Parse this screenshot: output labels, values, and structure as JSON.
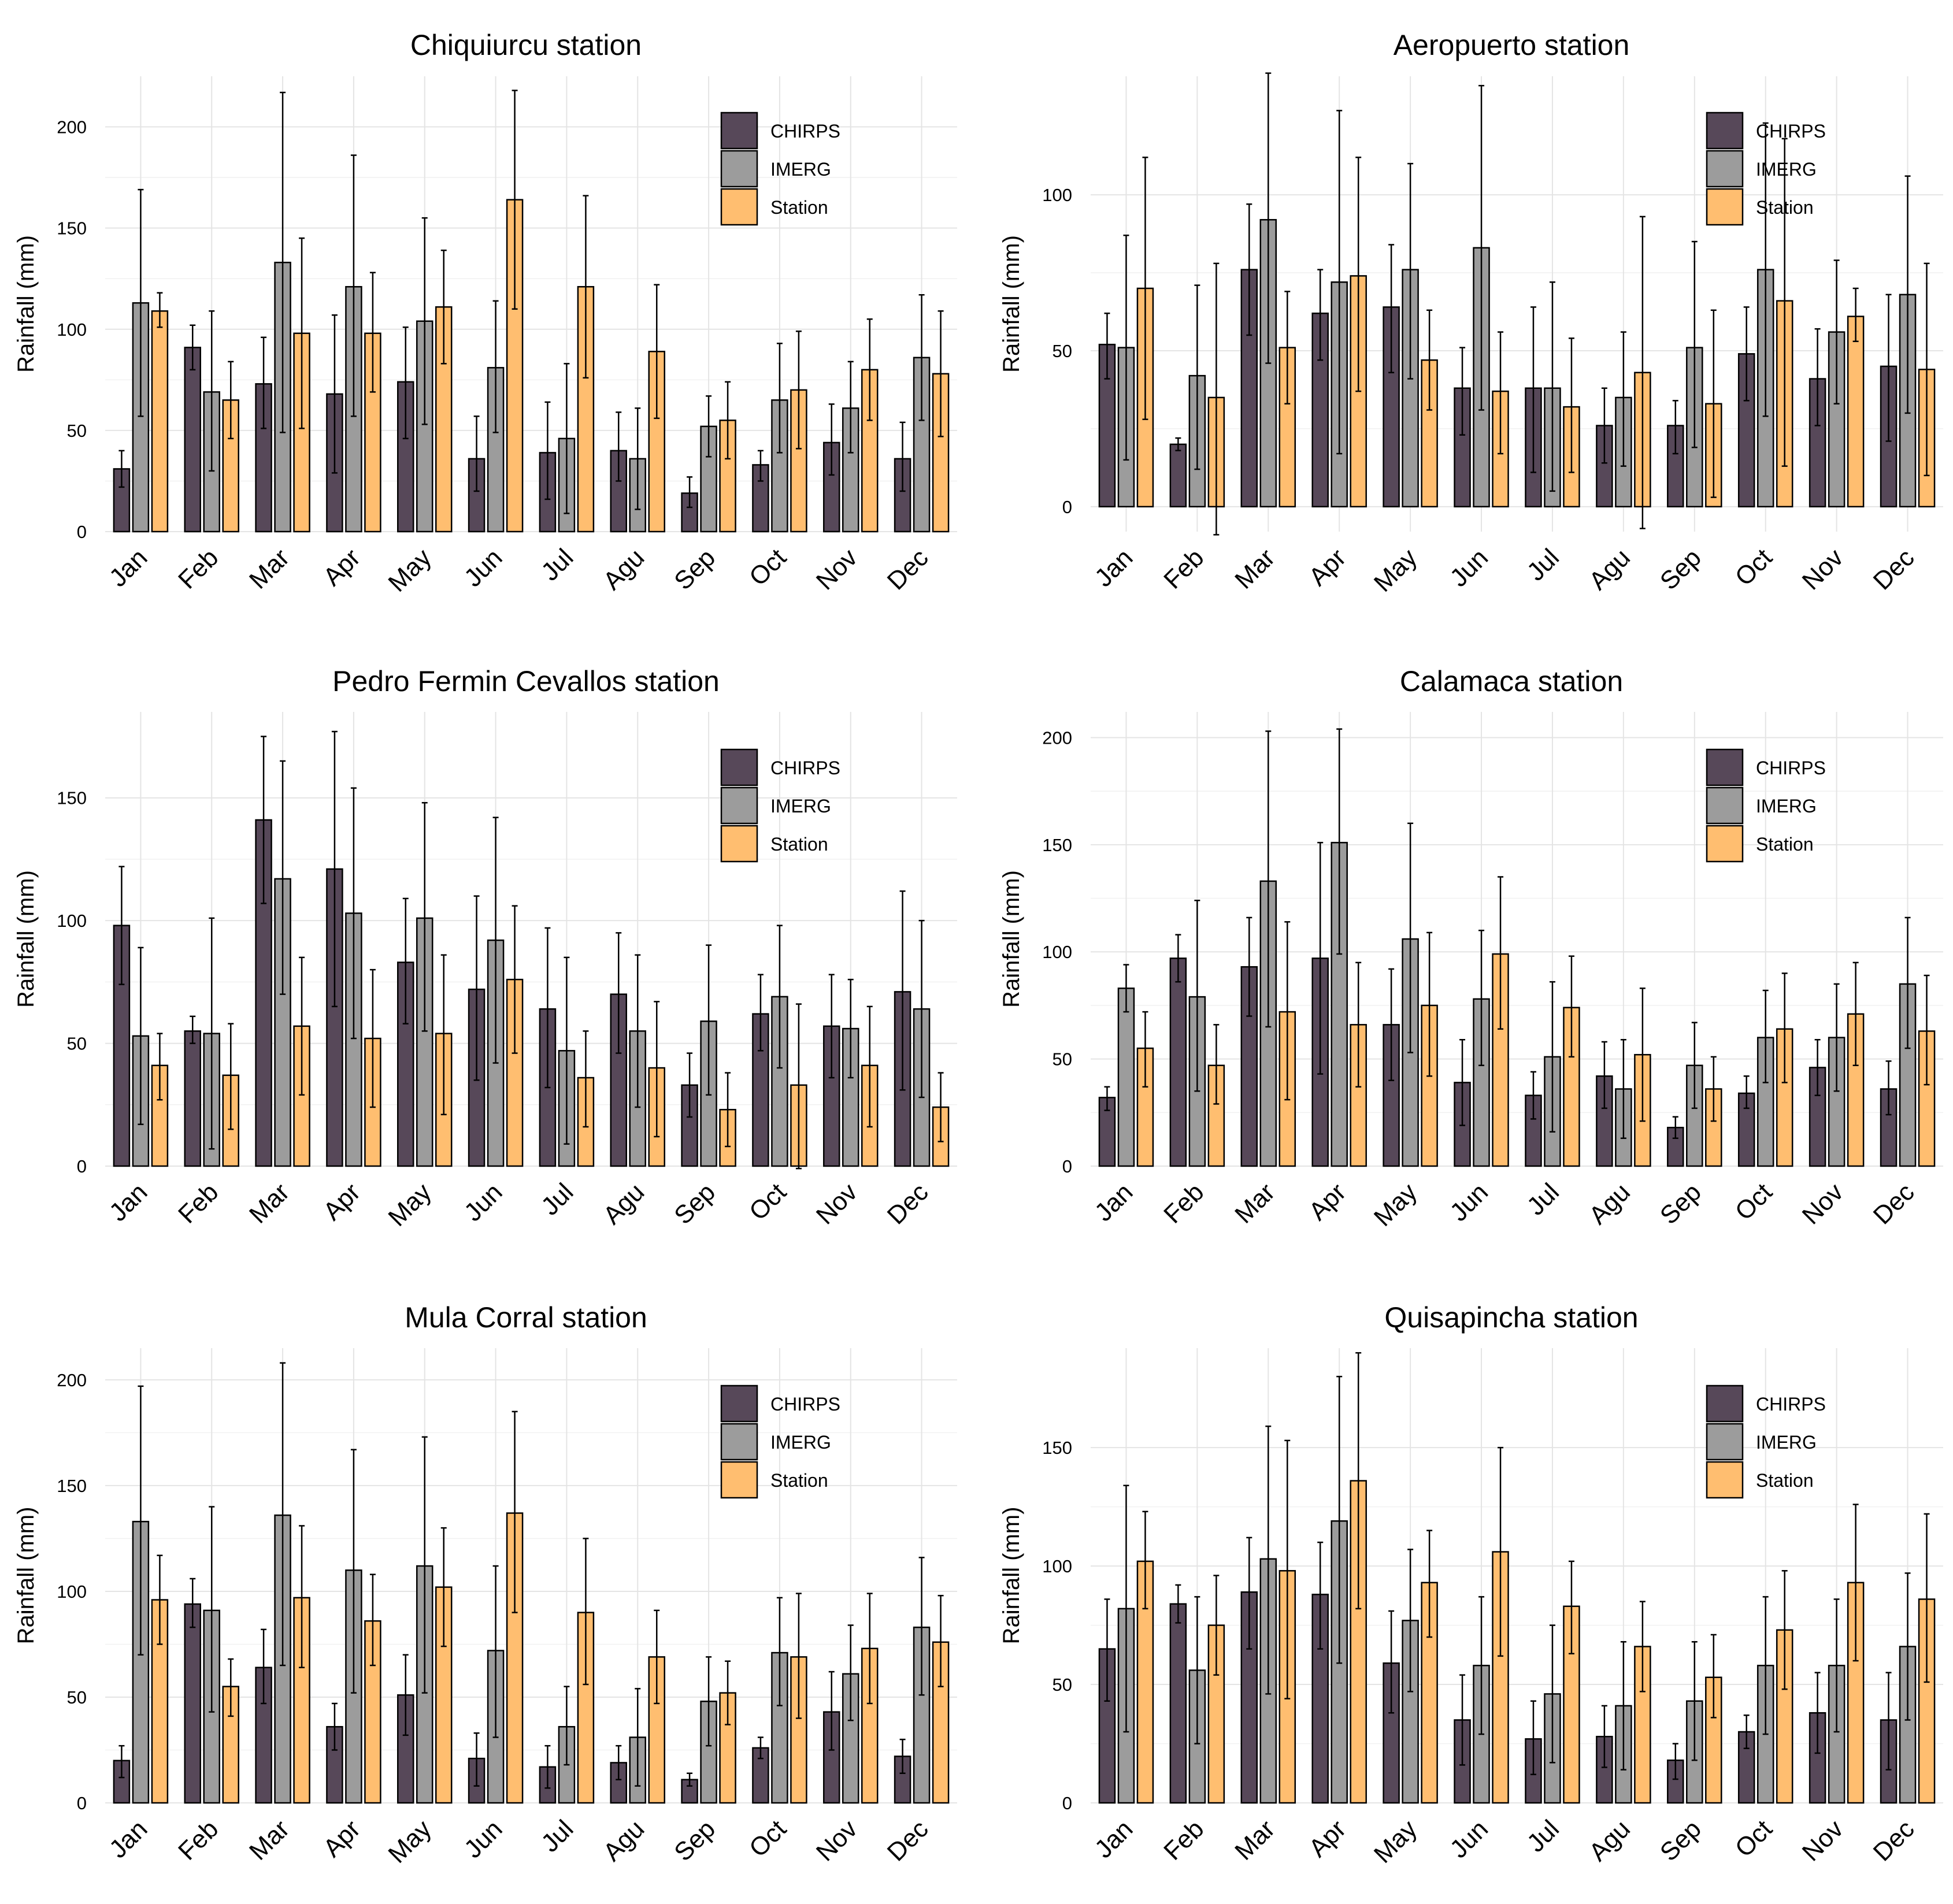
{
  "shared": {
    "months": [
      "Jan",
      "Feb",
      "Mar",
      "Apr",
      "May",
      "Jun",
      "Jul",
      "Agu",
      "Sep",
      "Oct",
      "Nov",
      "Dec"
    ],
    "ylabel": "Rainfall (mm)",
    "legend": [
      {
        "name": "CHIRPS",
        "color": "#574859"
      },
      {
        "name": "IMERG",
        "color": "#9c9c9c"
      },
      {
        "name": "Station",
        "color": "#ffbe70"
      }
    ]
  },
  "chart_data": [
    {
      "type": "bar",
      "title": "Chiquiurcu station",
      "ylabel": "Rainfall (mm)",
      "ylim": [
        0,
        225
      ],
      "yticks": [
        0,
        50,
        100,
        150,
        200
      ],
      "categories": [
        "Jan",
        "Feb",
        "Mar",
        "Apr",
        "May",
        "Jun",
        "Jul",
        "Agu",
        "Sep",
        "Oct",
        "Nov",
        "Dec"
      ],
      "series": [
        {
          "name": "CHIRPS",
          "values": [
            31,
            91,
            73,
            68,
            74,
            36,
            39,
            40,
            19,
            33,
            44,
            36
          ],
          "err_low": [
            22,
            80,
            51,
            29,
            46,
            20,
            16,
            25,
            12,
            25,
            28,
            20
          ],
          "err_high": [
            40,
            102,
            96,
            107,
            101,
            57,
            64,
            59,
            27,
            40,
            63,
            54
          ]
        },
        {
          "name": "IMERG",
          "values": [
            113,
            69,
            133,
            121,
            104,
            81,
            46,
            36,
            52,
            65,
            61,
            86
          ],
          "err_low": [
            57,
            30,
            49,
            57,
            53,
            49,
            9,
            11,
            37,
            39,
            39,
            55
          ],
          "err_high": [
            169,
            109,
            217,
            186,
            155,
            114,
            83,
            61,
            67,
            93,
            84,
            117
          ]
        },
        {
          "name": "Station",
          "values": [
            109,
            65,
            98,
            98,
            111,
            164,
            121,
            89,
            55,
            70,
            80,
            78
          ],
          "err_low": [
            101,
            46,
            51,
            69,
            83,
            110,
            76,
            56,
            36,
            41,
            55,
            47
          ],
          "err_high": [
            118,
            84,
            145,
            128,
            139,
            218,
            166,
            122,
            74,
            99,
            105,
            109
          ]
        }
      ]
    },
    {
      "type": "bar",
      "title": "Aeropuerto station",
      "ylabel": "Rainfall (mm)",
      "ylim": [
        -8,
        138
      ],
      "yticks": [
        0,
        50,
        100
      ],
      "categories": [
        "Jan",
        "Feb",
        "Mar",
        "Apr",
        "May",
        "Jun",
        "Jul",
        "Agu",
        "Sep",
        "Oct",
        "Nov",
        "Dec"
      ],
      "series": [
        {
          "name": "CHIRPS",
          "values": [
            52,
            20,
            76,
            62,
            64,
            38,
            38,
            26,
            26,
            49,
            41,
            45
          ],
          "err_low": [
            41,
            18,
            55,
            47,
            43,
            23,
            11,
            14,
            17,
            34,
            26,
            21
          ],
          "err_high": [
            62,
            22,
            97,
            76,
            84,
            51,
            64,
            38,
            34,
            64,
            57,
            68
          ]
        },
        {
          "name": "IMERG",
          "values": [
            51,
            42,
            92,
            72,
            76,
            83,
            38,
            35,
            51,
            76,
            56,
            68
          ],
          "err_low": [
            15,
            12,
            46,
            17,
            41,
            31,
            5,
            13,
            19,
            29,
            33,
            30
          ],
          "err_high": [
            87,
            71,
            139,
            127,
            110,
            135,
            72,
            56,
            85,
            123,
            79,
            106
          ]
        },
        {
          "name": "Station",
          "values": [
            70,
            35,
            51,
            74,
            47,
            37,
            32,
            43,
            33,
            66,
            61,
            44
          ],
          "err_low": [
            28,
            -9,
            33,
            37,
            31,
            17,
            11,
            -7,
            3,
            13,
            53,
            10
          ],
          "err_high": [
            112,
            78,
            69,
            112,
            63,
            56,
            54,
            93,
            63,
            118,
            70,
            78
          ]
        }
      ]
    },
    {
      "type": "bar",
      "title": "Pedro Fermin Cevallos station",
      "ylabel": "Rainfall (mm)",
      "ylim": [
        0,
        185
      ],
      "yticks": [
        0,
        50,
        100,
        150
      ],
      "categories": [
        "Jan",
        "Feb",
        "Mar",
        "Apr",
        "May",
        "Jun",
        "Jul",
        "Agu",
        "Sep",
        "Oct",
        "Nov",
        "Dec"
      ],
      "series": [
        {
          "name": "CHIRPS",
          "values": [
            98,
            55,
            141,
            121,
            83,
            72,
            64,
            70,
            33,
            62,
            57,
            71
          ],
          "err_low": [
            74,
            50,
            107,
            65,
            58,
            35,
            32,
            46,
            20,
            47,
            36,
            31
          ],
          "err_high": [
            122,
            61,
            175,
            177,
            109,
            110,
            97,
            95,
            46,
            78,
            78,
            112
          ]
        },
        {
          "name": "IMERG",
          "values": [
            53,
            54,
            117,
            103,
            101,
            92,
            47,
            55,
            59,
            69,
            56,
            64
          ],
          "err_low": [
            17,
            7,
            70,
            52,
            55,
            42,
            9,
            24,
            29,
            40,
            36,
            28
          ],
          "err_high": [
            89,
            101,
            165,
            154,
            148,
            142,
            85,
            86,
            90,
            98,
            76,
            100
          ]
        },
        {
          "name": "Station",
          "values": [
            41,
            37,
            57,
            52,
            54,
            76,
            36,
            40,
            23,
            33,
            41,
            24
          ],
          "err_low": [
            27,
            15,
            29,
            24,
            21,
            46,
            16,
            12,
            8,
            -1,
            16,
            10
          ],
          "err_high": [
            54,
            58,
            85,
            80,
            86,
            106,
            55,
            67,
            38,
            66,
            65,
            38
          ]
        }
      ]
    },
    {
      "type": "bar",
      "title": "Calamaca station",
      "ylabel": "Rainfall (mm)",
      "ylim": [
        0,
        212
      ],
      "yticks": [
        0,
        50,
        100,
        150,
        200
      ],
      "categories": [
        "Jan",
        "Feb",
        "Mar",
        "Apr",
        "May",
        "Jun",
        "Jul",
        "Agu",
        "Sep",
        "Oct",
        "Nov",
        "Dec"
      ],
      "series": [
        {
          "name": "CHIRPS",
          "values": [
            32,
            97,
            93,
            97,
            66,
            39,
            33,
            42,
            18,
            34,
            46,
            36
          ],
          "err_low": [
            26,
            86,
            70,
            43,
            40,
            19,
            22,
            27,
            13,
            27,
            33,
            24
          ],
          "err_high": [
            37,
            108,
            116,
            151,
            92,
            59,
            44,
            58,
            23,
            42,
            59,
            49
          ]
        },
        {
          "name": "IMERG",
          "values": [
            83,
            79,
            133,
            151,
            106,
            78,
            51,
            36,
            47,
            60,
            60,
            85
          ],
          "err_low": [
            72,
            35,
            65,
            99,
            53,
            47,
            16,
            13,
            27,
            39,
            35,
            55
          ],
          "err_high": [
            94,
            124,
            203,
            204,
            160,
            110,
            86,
            59,
            67,
            82,
            85,
            116
          ]
        },
        {
          "name": "Station",
          "values": [
            55,
            47,
            72,
            66,
            75,
            99,
            74,
            52,
            36,
            64,
            71,
            63
          ],
          "err_low": [
            37,
            29,
            31,
            37,
            42,
            64,
            51,
            21,
            21,
            39,
            47,
            38
          ],
          "err_high": [
            72,
            66,
            114,
            95,
            109,
            135,
            98,
            83,
            51,
            90,
            95,
            89
          ]
        }
      ]
    },
    {
      "type": "bar",
      "title": "Mula Corral station",
      "ylabel": "Rainfall (mm)",
      "ylim": [
        0,
        215
      ],
      "yticks": [
        0,
        50,
        100,
        150,
        200
      ],
      "categories": [
        "Jan",
        "Feb",
        "Mar",
        "Apr",
        "May",
        "Jun",
        "Jul",
        "Agu",
        "Sep",
        "Oct",
        "Nov",
        "Dec"
      ],
      "series": [
        {
          "name": "CHIRPS",
          "values": [
            20,
            94,
            64,
            36,
            51,
            21,
            17,
            19,
            11,
            26,
            43,
            22
          ],
          "err_low": [
            12,
            83,
            47,
            25,
            32,
            8,
            7,
            11,
            8,
            21,
            25,
            14
          ],
          "err_high": [
            27,
            106,
            82,
            47,
            70,
            33,
            27,
            27,
            14,
            31,
            62,
            30
          ]
        },
        {
          "name": "IMERG",
          "values": [
            133,
            91,
            136,
            110,
            112,
            72,
            36,
            31,
            48,
            71,
            61,
            83
          ],
          "err_low": [
            70,
            43,
            65,
            52,
            52,
            31,
            18,
            8,
            27,
            46,
            39,
            51
          ],
          "err_high": [
            197,
            140,
            208,
            167,
            173,
            112,
            55,
            54,
            69,
            97,
            84,
            116
          ]
        },
        {
          "name": "Station",
          "values": [
            96,
            55,
            97,
            86,
            102,
            137,
            90,
            69,
            52,
            69,
            73,
            76
          ],
          "err_low": [
            75,
            41,
            64,
            65,
            74,
            90,
            56,
            47,
            37,
            40,
            47,
            55
          ],
          "err_high": [
            117,
            68,
            131,
            108,
            130,
            185,
            125,
            91,
            67,
            99,
            99,
            98
          ]
        }
      ]
    },
    {
      "type": "bar",
      "title": "Quisapincha station",
      "ylabel": "Rainfall (mm)",
      "ylim": [
        0,
        192
      ],
      "yticks": [
        0,
        50,
        100,
        150
      ],
      "categories": [
        "Jan",
        "Feb",
        "Mar",
        "Apr",
        "May",
        "Jun",
        "Jul",
        "Agu",
        "Sep",
        "Oct",
        "Nov",
        "Dec"
      ],
      "series": [
        {
          "name": "CHIRPS",
          "values": [
            65,
            84,
            89,
            88,
            59,
            35,
            27,
            28,
            18,
            30,
            38,
            35
          ],
          "err_low": [
            43,
            76,
            65,
            65,
            38,
            16,
            12,
            15,
            10,
            23,
            21,
            14
          ],
          "err_high": [
            86,
            92,
            112,
            110,
            81,
            54,
            43,
            41,
            25,
            37,
            55,
            55
          ]
        },
        {
          "name": "IMERG",
          "values": [
            82,
            56,
            103,
            119,
            77,
            58,
            46,
            41,
            43,
            58,
            58,
            66
          ],
          "err_low": [
            30,
            25,
            46,
            59,
            47,
            29,
            17,
            14,
            18,
            29,
            30,
            35
          ],
          "err_high": [
            134,
            87,
            159,
            180,
            107,
            87,
            75,
            68,
            68,
            87,
            86,
            97
          ]
        },
        {
          "name": "Station",
          "values": [
            102,
            75,
            98,
            136,
            93,
            106,
            83,
            66,
            53,
            73,
            93,
            86
          ],
          "err_low": [
            82,
            54,
            44,
            82,
            70,
            62,
            63,
            47,
            36,
            48,
            60,
            51
          ],
          "err_high": [
            123,
            96,
            153,
            190,
            115,
            150,
            102,
            85,
            71,
            98,
            126,
            122
          ]
        }
      ]
    }
  ]
}
